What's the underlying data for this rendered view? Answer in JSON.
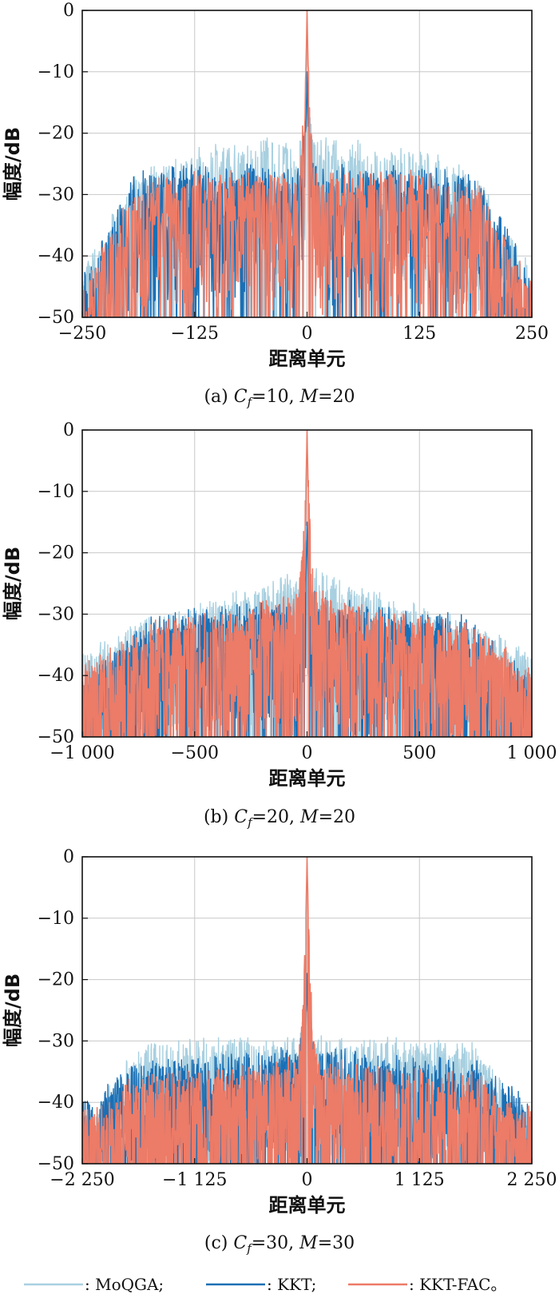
{
  "colors": {
    "MoQGA": "#a8d0e0",
    "KKT": "#1a6fb5",
    "KKT-FAC": "#ec7b67",
    "grid": "#c8c8c8",
    "frame": "#111111"
  },
  "legend": {
    "entries": [
      {
        "series": "MoQGA",
        "label": ": MoQGA;"
      },
      {
        "series": "KKT",
        "label": ": KKT;"
      },
      {
        "series": "KKT-FAC",
        "label": ": KKT-FAC。"
      }
    ]
  },
  "chart_data": [
    {
      "type": "line",
      "panel": "a",
      "caption": {
        "prefix": "(a)  ",
        "cf_sym": "C",
        "cf_sub": "f",
        "rest": "=10, ",
        "m_sym": "M",
        "m_rest": "=20"
      },
      "xlabel": "距离单元",
      "ylabel": "幅度/dB",
      "xlim": [
        -250,
        250
      ],
      "ylim": [
        -50,
        0
      ],
      "xticks": [
        -250,
        -125,
        0,
        125,
        250
      ],
      "xtick_labels": [
        "−250",
        "−125",
        "0",
        "125",
        "250"
      ],
      "yticks": [
        0,
        -10,
        -20,
        -30,
        -40,
        -50
      ],
      "ytick_labels": [
        "0",
        "−10",
        "−20",
        "−30",
        "−40",
        "−50"
      ],
      "grid": true,
      "series_envelopes": [
        {
          "name": "MoQGA",
          "peak_db": -12,
          "sidelobe_db": [
            [
              0,
              -20
            ],
            [
              125,
              -22
            ],
            [
              190,
              -26
            ],
            [
              250,
              -42
            ]
          ],
          "floor_db": -50
        },
        {
          "name": "KKT",
          "peak_db": -10,
          "sidelobe_db": [
            [
              0,
              -25
            ],
            [
              125,
              -25
            ],
            [
              190,
              -26
            ],
            [
              250,
              -43
            ]
          ],
          "floor_db": -50
        },
        {
          "name": "KKT-FAC",
          "peak_db": 0,
          "sidelobe_db": [
            [
              0,
              -26
            ],
            [
              125,
              -26
            ],
            [
              190,
              -28
            ],
            [
              250,
              -44
            ]
          ],
          "floor_db": -50
        }
      ]
    },
    {
      "type": "line",
      "panel": "b",
      "caption": {
        "prefix": "(b)  ",
        "cf_sym": "C",
        "cf_sub": "f",
        "rest": "=20, ",
        "m_sym": "M",
        "m_rest": "=20"
      },
      "xlabel": "距离单元",
      "ylabel": "幅度/dB",
      "xlim": [
        -1000,
        1000
      ],
      "ylim": [
        -50,
        0
      ],
      "xticks": [
        -1000,
        -500,
        0,
        500,
        1000
      ],
      "xtick_labels": [
        "−1 000",
        "−500",
        "0",
        "500",
        "1 000"
      ],
      "yticks": [
        0,
        -10,
        -20,
        -30,
        -40,
        -50
      ],
      "ytick_labels": [
        "0",
        "−10",
        "−20",
        "−30",
        "−40",
        "−50"
      ],
      "grid": true,
      "series_envelopes": [
        {
          "name": "MoQGA",
          "peak_db": -15,
          "sidelobe_db": [
            [
              0,
              -22
            ],
            [
              300,
              -26
            ],
            [
              700,
              -30
            ],
            [
              1000,
              -36
            ]
          ],
          "floor_db": -50
        },
        {
          "name": "KKT",
          "peak_db": -15,
          "sidelobe_db": [
            [
              0,
              -27
            ],
            [
              300,
              -28
            ],
            [
              700,
              -30
            ],
            [
              1000,
              -40
            ]
          ],
          "floor_db": -50
        },
        {
          "name": "KKT-FAC",
          "peak_db": 0,
          "sidelobe_db": [
            [
              0,
              -25
            ],
            [
              300,
              -29
            ],
            [
              700,
              -31
            ],
            [
              1000,
              -38
            ]
          ],
          "floor_db": -50
        }
      ]
    },
    {
      "type": "line",
      "panel": "c",
      "caption": {
        "prefix": "(c)  ",
        "cf_sym": "C",
        "cf_sub": "f",
        "rest": "=30, ",
        "m_sym": "M",
        "m_rest": "=30"
      },
      "xlabel": "距离单元",
      "ylabel": "幅度/dB",
      "xlim": [
        -2250,
        2250
      ],
      "ylim": [
        -50,
        0
      ],
      "xticks": [
        -2250,
        -1125,
        0,
        1125,
        2250
      ],
      "xtick_labels": [
        "−2 250",
        "−1 125",
        "0",
        "1 125",
        "2 250"
      ],
      "yticks": [
        0,
        -10,
        -20,
        -30,
        -40,
        -50
      ],
      "ytick_labels": [
        "0",
        "−10",
        "−20",
        "−30",
        "−40",
        "−50"
      ],
      "grid": true,
      "series_envelopes": [
        {
          "name": "MoQGA",
          "peak_db": -19,
          "sidelobe_db": [
            [
              0,
              -29
            ],
            [
              700,
              -29
            ],
            [
              1700,
              -30
            ],
            [
              2100,
              -40
            ]
          ],
          "floor_db": -50
        },
        {
          "name": "KKT",
          "peak_db": -19,
          "sidelobe_db": [
            [
              0,
              -30
            ],
            [
              700,
              -32
            ],
            [
              1700,
              -33
            ],
            [
              2200,
              -39
            ]
          ],
          "floor_db": -50
        },
        {
          "name": "KKT-FAC",
          "peak_db": 0,
          "sidelobe_db": [
            [
              0,
              -32
            ],
            [
              700,
              -34
            ],
            [
              1700,
              -35
            ],
            [
              2050,
              -40
            ]
          ],
          "floor_db": -50
        }
      ]
    }
  ]
}
